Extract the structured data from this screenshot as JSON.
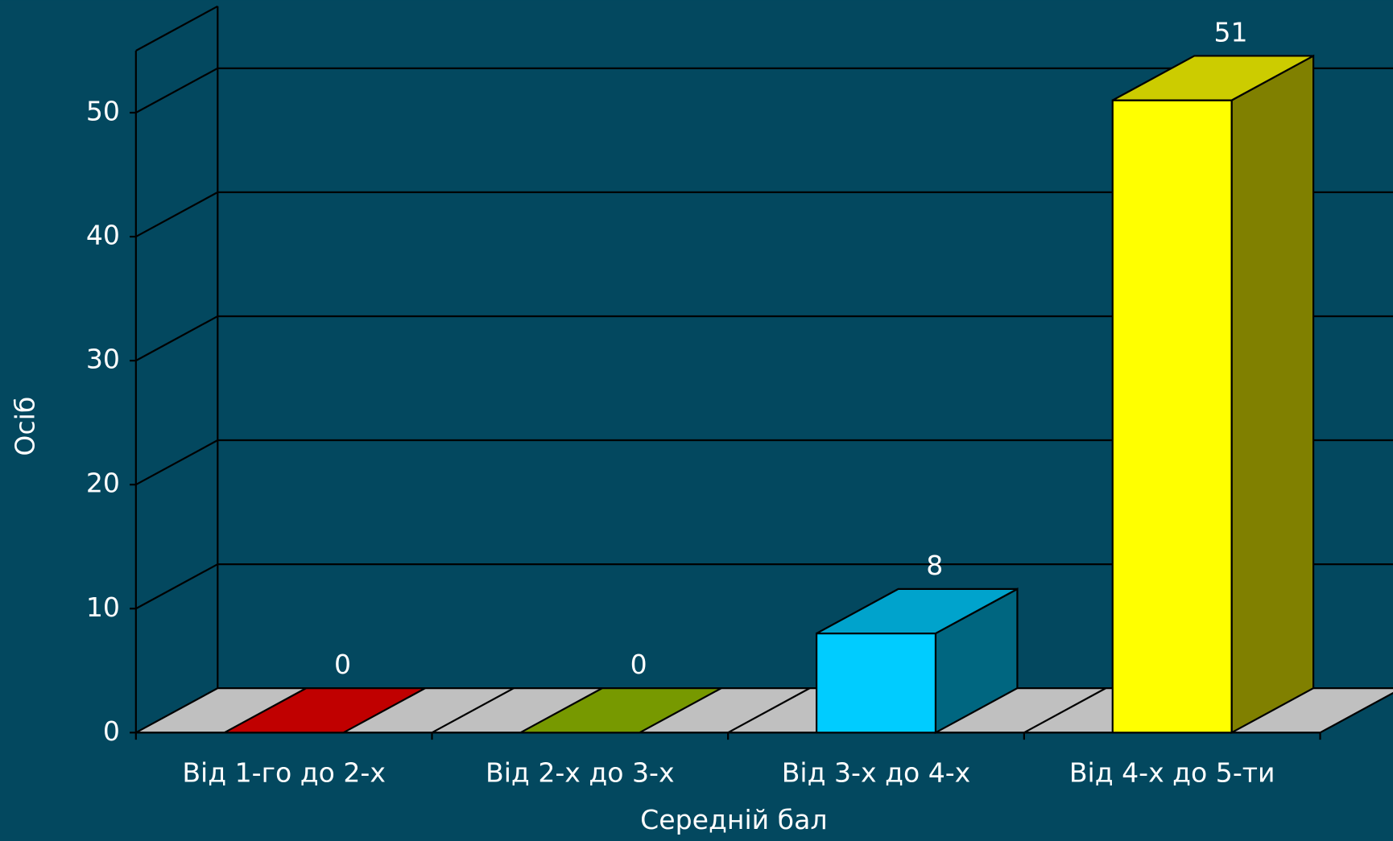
{
  "chart_data": {
    "type": "bar3d",
    "x_label": "Середній бал",
    "y_label": "Осіб",
    "categories": [
      "Від 1-го до 2-х",
      "Від 2-х до 3-х",
      "Від 3-х до 4-х",
      "Від 4-х до 5-ти"
    ],
    "values": [
      0,
      0,
      8,
      51
    ],
    "colors": [
      "#c00000",
      "#779900",
      "#00ccff",
      "#ffff00"
    ],
    "ylim": [
      0,
      55
    ],
    "yticks": [
      0,
      10,
      20,
      30,
      40,
      50
    ],
    "grid": true
  }
}
